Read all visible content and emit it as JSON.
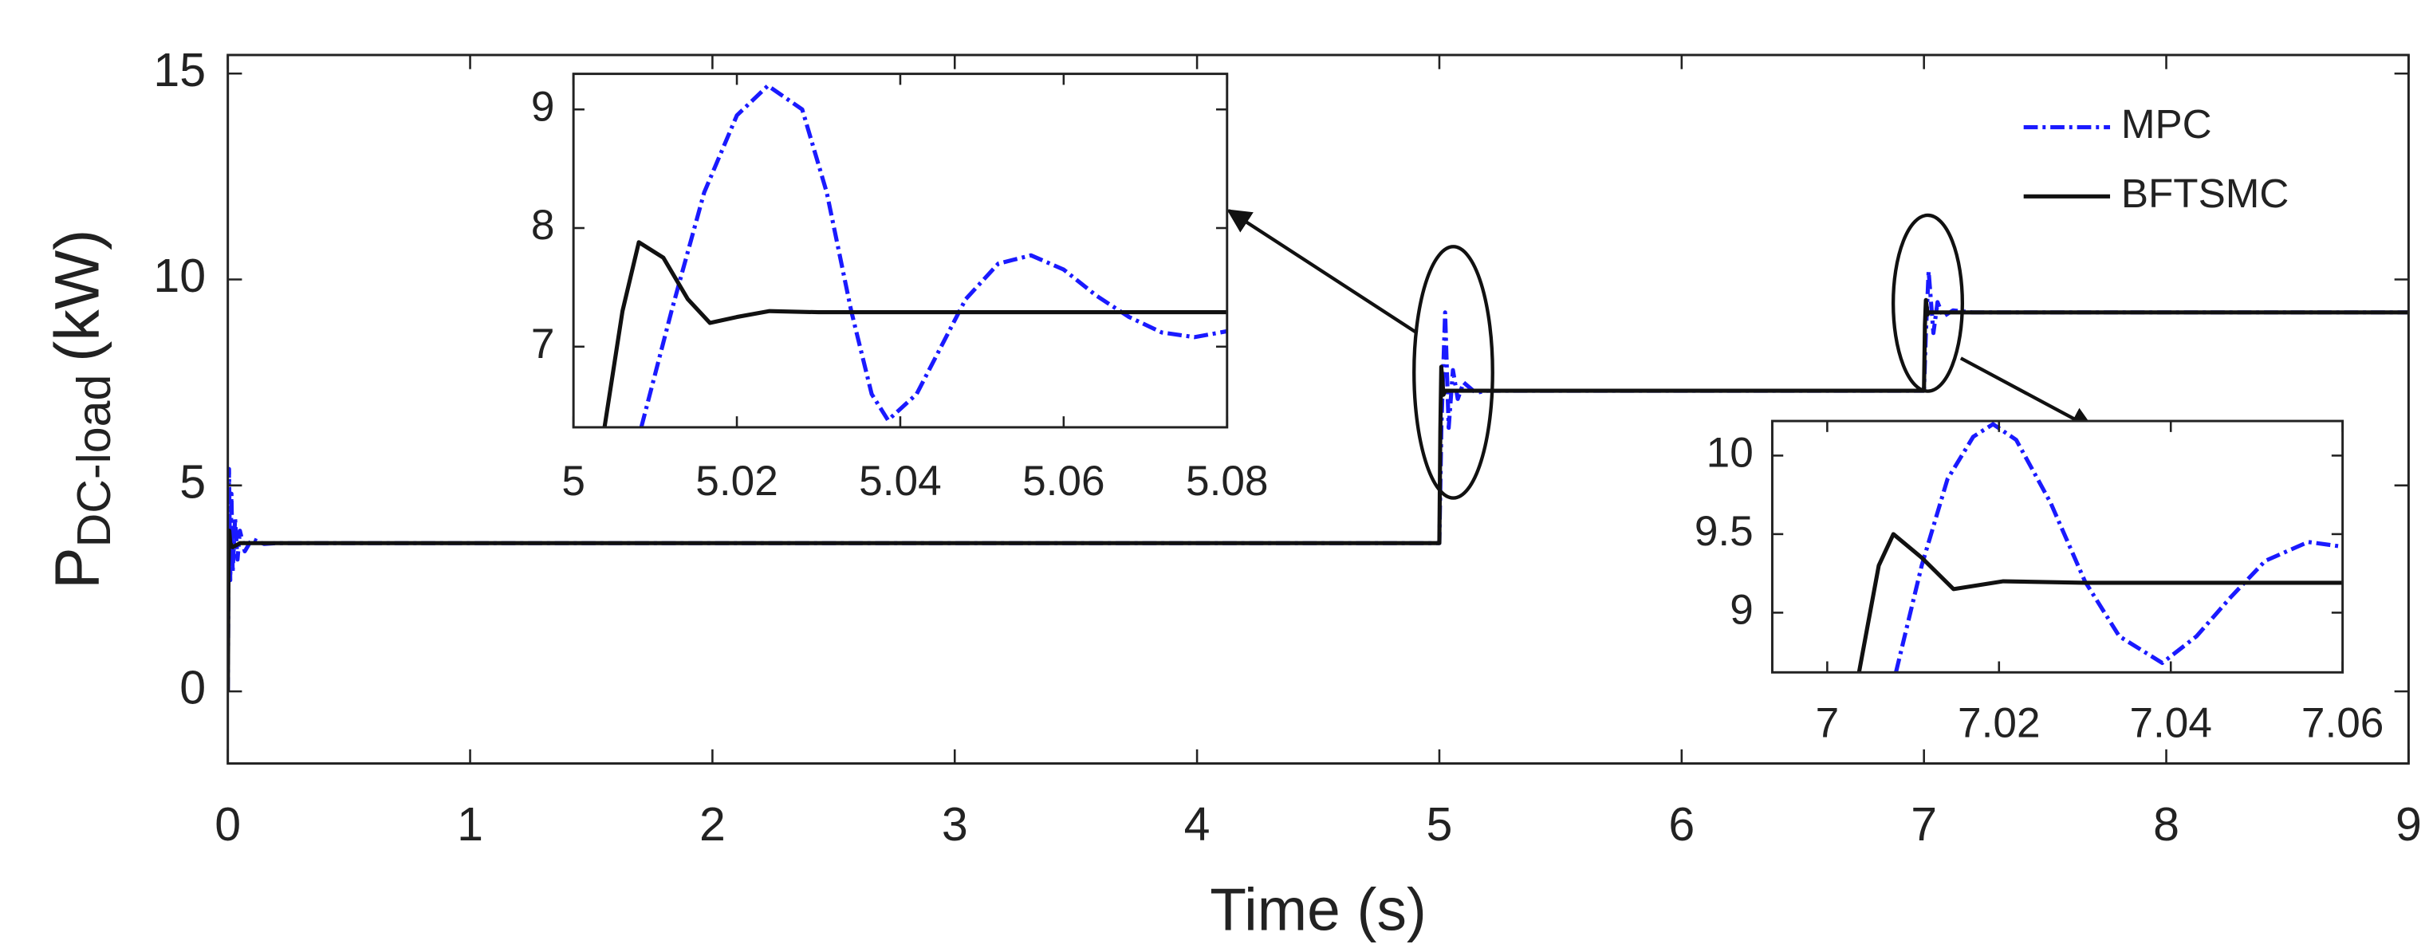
{
  "chart_data": [
    {
      "type": "line",
      "xlabel": "Time (s)",
      "ylabel": "P",
      "ylabel_sub": "DC-load",
      "ylabel_unit": "(kW)",
      "xlim": [
        0,
        9
      ],
      "ylim": [
        -1.75,
        15.45
      ],
      "xticks": [
        0,
        1,
        2,
        3,
        4,
        5,
        6,
        7,
        8,
        9
      ],
      "yticks": [
        0,
        5,
        10,
        15
      ],
      "legend": "upper right",
      "series": [
        {
          "name": "MPC",
          "color": "#1a1aff",
          "style": "dashdot",
          "x": [
            0,
            0.005,
            0.01,
            0.015,
            0.02,
            0.03,
            0.04,
            0.05,
            0.07,
            0.1,
            0.15,
            0.2,
            4.995,
            5.0,
            5.0083,
            5.0238,
            5.0385,
            5.056,
            5.076,
            5.1,
            5.15,
            5.2,
            6.995,
            7.0,
            7.008,
            7.0193,
            7.039,
            7.056,
            7.08,
            7.12,
            7.2,
            9
          ],
          "values": [
            0,
            5.4,
            2.7,
            4.8,
            2.9,
            4.2,
            3.2,
            3.9,
            3.4,
            3.7,
            3.58,
            3.6,
            3.6,
            3.6,
            6.4,
            9.2,
            6.4,
            7.8,
            7.1,
            7.5,
            7.25,
            7.3,
            7.3,
            7.3,
            8.7,
            10.2,
            8.7,
            9.45,
            9.1,
            9.25,
            9.2,
            9.2
          ]
        },
        {
          "name": "BFTSMC",
          "color": "#111111",
          "style": "solid",
          "x": [
            0,
            0.003,
            0.006,
            0.01,
            0.02,
            0.05,
            4.999,
            5.0,
            5.004,
            5.008,
            5.017,
            5.024,
            6.999,
            7.0,
            7.004,
            7.008,
            7.015,
            7.02,
            9
          ],
          "values": [
            0,
            3.0,
            3.9,
            3.6,
            3.5,
            3.6,
            3.6,
            3.6,
            6.3,
            7.88,
            7.2,
            7.3,
            7.3,
            7.3,
            8.9,
            9.5,
            9.15,
            9.2,
            9.2
          ]
        }
      ]
    },
    {
      "type": "line",
      "xlim": [
        5,
        5.08
      ],
      "ylim": [
        6.32,
        9.3
      ],
      "xticks": [
        5,
        5.02,
        5.04,
        5.06,
        5.08
      ],
      "yticks": [
        7,
        8,
        9
      ],
      "series": [
        {
          "color": "#1a1aff",
          "style": "dashdot",
          "x": [
            5.0083,
            5.012,
            5.016,
            5.02,
            5.0238,
            5.028,
            5.031,
            5.034,
            5.0365,
            5.0385,
            5.042,
            5.045,
            5.048,
            5.052,
            5.056,
            5.06,
            5.064,
            5.068,
            5.072,
            5.076,
            5.08
          ],
          "values": [
            6.32,
            7.3,
            8.3,
            8.95,
            9.2,
            9.0,
            8.3,
            7.3,
            6.6,
            6.38,
            6.6,
            7.0,
            7.4,
            7.7,
            7.77,
            7.65,
            7.43,
            7.25,
            7.12,
            7.08,
            7.13
          ]
        },
        {
          "color": "#111111",
          "style": "solid",
          "x": [
            5.0038,
            5.006,
            5.008,
            5.011,
            5.014,
            5.0167,
            5.02,
            5.024,
            5.03,
            5.08
          ],
          "values": [
            6.32,
            7.3,
            7.88,
            7.75,
            7.4,
            7.2,
            7.25,
            7.3,
            7.29,
            7.29
          ]
        }
      ]
    },
    {
      "type": "line",
      "xlim": [
        6.9936,
        7.06
      ],
      "ylim": [
        8.62,
        10.22
      ],
      "xticks": [
        7,
        7.02,
        7.04,
        7.06
      ],
      "yticks": [
        9,
        9.5,
        10
      ],
      "series": [
        {
          "color": "#1a1aff",
          "style": "dashdot",
          "x": [
            7.008,
            7.011,
            7.014,
            7.017,
            7.0193,
            7.022,
            7.026,
            7.03,
            7.034,
            7.039,
            7.043,
            7.047,
            7.051,
            7.056,
            7.06
          ],
          "values": [
            8.62,
            9.3,
            9.85,
            10.12,
            10.2,
            10.1,
            9.7,
            9.2,
            8.85,
            8.68,
            8.85,
            9.1,
            9.33,
            9.45,
            9.42
          ]
        },
        {
          "color": "#111111",
          "style": "solid",
          "x": [
            7.0037,
            7.006,
            7.0077,
            7.011,
            7.0147,
            7.0205,
            7.03,
            7.06
          ],
          "values": [
            8.62,
            9.3,
            9.5,
            9.35,
            9.15,
            9.2,
            9.19,
            9.19
          ]
        }
      ]
    }
  ]
}
